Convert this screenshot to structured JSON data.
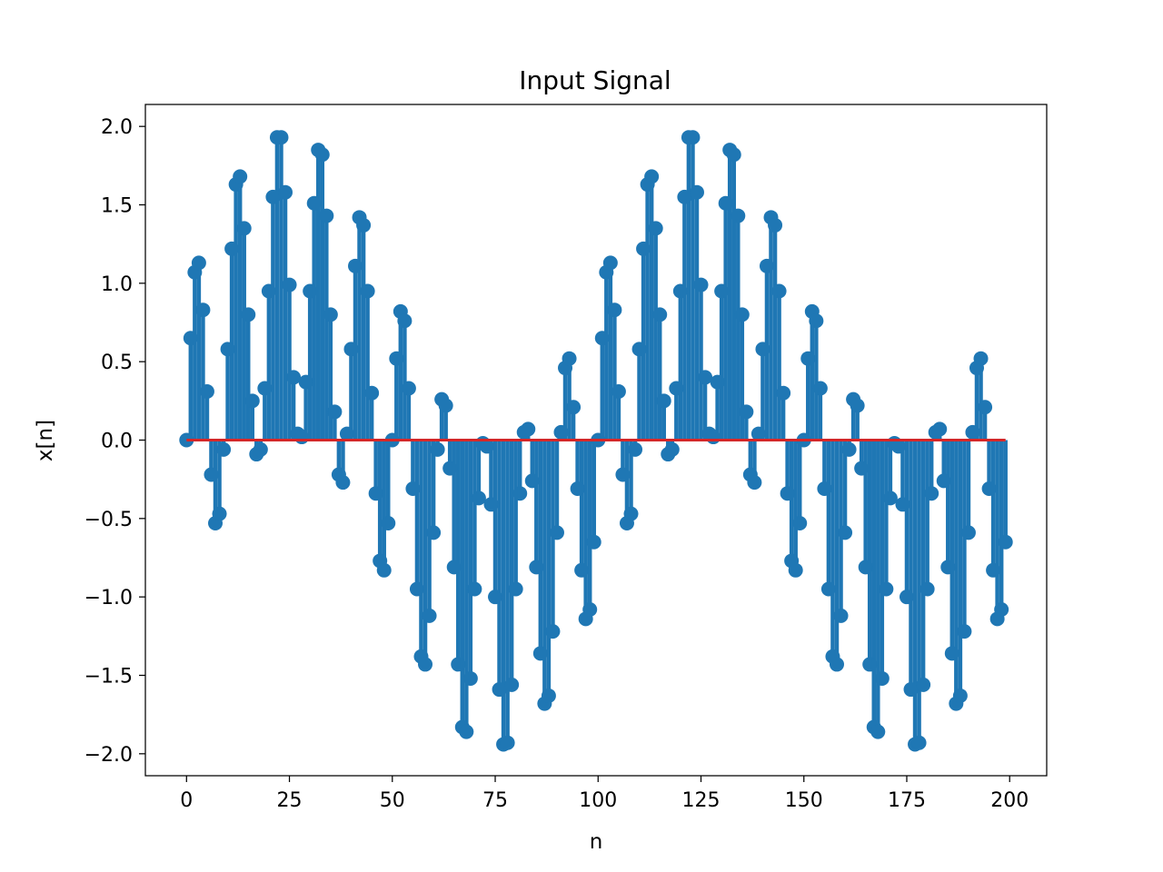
{
  "chart_data": {
    "type": "stem",
    "title": "Input Signal",
    "xlabel": "n",
    "ylabel": "x[n]",
    "xlim": [
      -10,
      209
    ],
    "ylim": [
      -2.14,
      2.14
    ],
    "x_ticks": [
      0,
      25,
      50,
      75,
      100,
      125,
      150,
      175,
      200
    ],
    "y_ticks": [
      -2.0,
      -1.5,
      -1.0,
      -0.5,
      0.0,
      0.5,
      1.0,
      1.5,
      2.0
    ],
    "x_tick_labels": [
      "0",
      "25",
      "50",
      "75",
      "100",
      "125",
      "150",
      "175",
      "200"
    ],
    "y_tick_labels": [
      "−2.0",
      "−1.5",
      "−1.0",
      "−0.5",
      "0.0",
      "0.5",
      "1.0",
      "1.5",
      "2.0"
    ],
    "grid": false,
    "legend": "none",
    "baseline_value": 0.0,
    "stem_color": "#1f77b4",
    "marker_color": "#1f77b4",
    "baseline_color": "#d62728",
    "x": [
      0,
      1,
      2,
      3,
      4,
      5,
      6,
      7,
      8,
      9,
      10,
      11,
      12,
      13,
      14,
      15,
      16,
      17,
      18,
      19,
      20,
      21,
      22,
      23,
      24,
      25,
      26,
      27,
      28,
      29,
      30,
      31,
      32,
      33,
      34,
      35,
      36,
      37,
      38,
      39,
      40,
      41,
      42,
      43,
      44,
      45,
      46,
      47,
      48,
      49,
      50,
      51,
      52,
      53,
      54,
      55,
      56,
      57,
      58,
      59,
      60,
      61,
      62,
      63,
      64,
      65,
      66,
      67,
      68,
      69,
      70,
      71,
      72,
      73,
      74,
      75,
      76,
      77,
      78,
      79,
      80,
      81,
      82,
      83,
      84,
      85,
      86,
      87,
      88,
      89,
      90,
      91,
      92,
      93,
      94,
      95,
      96,
      97,
      98,
      99,
      100,
      101,
      102,
      103,
      104,
      105,
      106,
      107,
      108,
      109,
      110,
      111,
      112,
      113,
      114,
      115,
      116,
      117,
      118,
      119,
      120,
      121,
      122,
      123,
      124,
      125,
      126,
      127,
      128,
      129,
      130,
      131,
      132,
      133,
      134,
      135,
      136,
      137,
      138,
      139,
      140,
      141,
      142,
      143,
      144,
      145,
      146,
      147,
      148,
      149,
      150,
      151,
      152,
      153,
      154,
      155,
      156,
      157,
      158,
      159,
      160,
      161,
      162,
      163,
      164,
      165,
      166,
      167,
      168,
      169,
      170,
      171,
      172,
      173,
      174,
      175,
      176,
      177,
      178,
      179,
      180,
      181,
      182,
      183,
      184,
      185,
      186,
      187,
      188,
      189,
      190,
      191,
      192,
      193,
      194,
      195,
      196,
      197,
      198,
      199
    ],
    "values": [
      0.0,
      0.65,
      1.07,
      1.13,
      0.83,
      0.31,
      -0.22,
      -0.53,
      -0.47,
      -0.06,
      0.58,
      1.22,
      1.63,
      1.68,
      1.35,
      0.8,
      0.25,
      -0.09,
      -0.06,
      0.33,
      0.95,
      1.55,
      1.93,
      1.93,
      1.58,
      0.99,
      0.4,
      0.04,
      0.02,
      0.37,
      0.95,
      1.51,
      1.85,
      1.82,
      1.43,
      0.8,
      0.18,
      -0.22,
      -0.27,
      0.04,
      0.58,
      1.11,
      1.42,
      1.37,
      0.95,
      0.3,
      -0.34,
      -0.77,
      -0.83,
      -0.53,
      0.0,
      0.52,
      0.82,
      0.76,
      0.33,
      -0.31,
      -0.95,
      -1.38,
      -1.43,
      -1.12,
      -0.59,
      -0.06,
      0.26,
      0.22,
      -0.18,
      -0.81,
      -1.43,
      -1.83,
      -1.86,
      -1.52,
      -0.95,
      -0.37,
      -0.02,
      -0.04,
      -0.41,
      -1.0,
      -1.59,
      -1.94,
      -1.93,
      -1.56,
      -0.95,
      -0.34,
      0.05,
      0.07,
      -0.26,
      -0.81,
      -1.36,
      -1.68,
      -1.63,
      -1.22,
      -0.59,
      0.05,
      0.46,
      0.52,
      0.21,
      -0.31,
      -0.83,
      -1.14,
      -1.08,
      -0.65,
      0.0,
      0.65,
      1.07,
      1.13,
      0.83,
      0.31,
      -0.22,
      -0.53,
      -0.47,
      -0.06,
      0.58,
      1.22,
      1.63,
      1.68,
      1.35,
      0.8,
      0.25,
      -0.09,
      -0.06,
      0.33,
      0.95,
      1.55,
      1.93,
      1.93,
      1.58,
      0.99,
      0.4,
      0.04,
      0.02,
      0.37,
      0.95,
      1.51,
      1.85,
      1.82,
      1.43,
      0.8,
      0.18,
      -0.22,
      -0.27,
      0.04,
      0.58,
      1.11,
      1.42,
      1.37,
      0.95,
      0.3,
      -0.34,
      -0.77,
      -0.83,
      -0.53,
      0.0,
      0.52,
      0.82,
      0.76,
      0.33,
      -0.31,
      -0.95,
      -1.38,
      -1.43,
      -1.12,
      -0.59,
      -0.06,
      0.26,
      0.22,
      -0.18,
      -0.81,
      -1.43,
      -1.83,
      -1.86,
      -1.52,
      -0.95,
      -0.37,
      -0.02,
      -0.04,
      -0.41,
      -1.0,
      -1.59,
      -1.94,
      -1.93,
      -1.56,
      -0.95,
      -0.34,
      0.05,
      0.07,
      -0.26,
      -0.81,
      -1.36,
      -1.68,
      -1.63,
      -1.22,
      -0.59,
      0.05,
      0.46,
      0.52,
      0.21,
      -0.31,
      -0.83,
      -1.14,
      -1.08,
      -0.65
    ]
  }
}
